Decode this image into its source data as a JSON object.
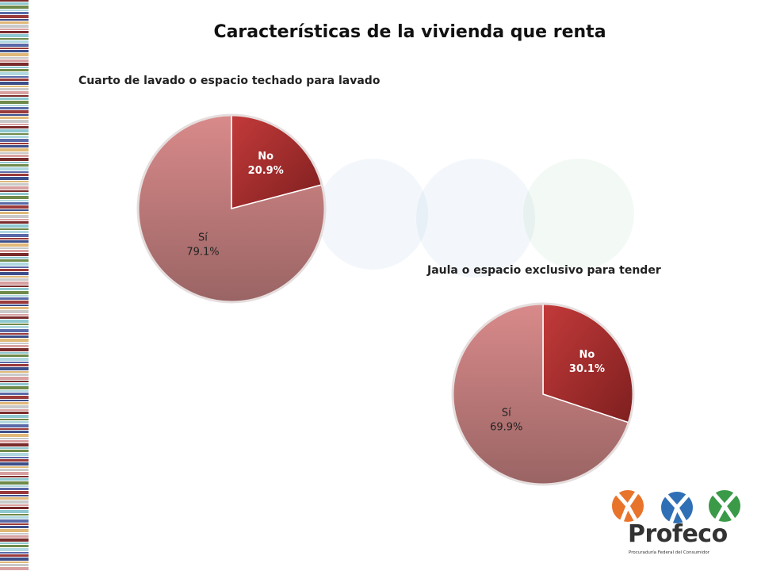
{
  "page": {
    "title": "Características de la vivienda que renta"
  },
  "chart_data": [
    {
      "type": "pie",
      "title": "Cuarto de lavado o espacio techado para lavado",
      "slices": [
        {
          "label": "No",
          "value": 20.9,
          "display": "20.9%",
          "color": "#9e2a2a"
        },
        {
          "label": "Sí",
          "value": 79.1,
          "display": "79.1%",
          "color": "#b57878"
        }
      ]
    },
    {
      "type": "pie",
      "title": "Jaula o espacio exclusivo para tender",
      "slices": [
        {
          "label": "No",
          "value": 30.1,
          "display": "30.1%",
          "color": "#9e2a2a"
        },
        {
          "label": "Sí",
          "value": 69.9,
          "display": "69.9%",
          "color": "#b57878"
        }
      ]
    }
  ],
  "logo": {
    "name": "Profeco",
    "subtitle": "Procuraduría Federal del Consumidor",
    "colors": [
      "#e8732a",
      "#2f6fb5",
      "#3a9a48"
    ]
  }
}
